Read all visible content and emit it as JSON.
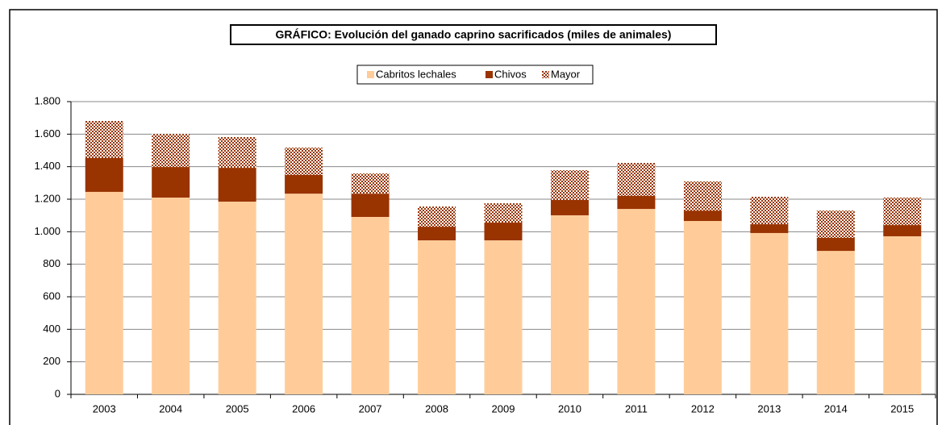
{
  "chart_data": {
    "type": "stacked_bar",
    "title": "GRÁFICO: Evolución del ganado caprino sacrificados (miles de animales)",
    "categories": [
      "2003",
      "2004",
      "2005",
      "2006",
      "2007",
      "2008",
      "2009",
      "2010",
      "2011",
      "2012",
      "2013",
      "2014",
      "2015"
    ],
    "series": [
      {
        "name": "Cabritos lechales",
        "color": "#FFCC99",
        "values": [
          1245,
          1210,
          1185,
          1234,
          1091,
          947,
          947,
          1101,
          1140,
          1066,
          992,
          882,
          972
        ]
      },
      {
        "name": "Chivos",
        "color": "#993300",
        "values": [
          208,
          188,
          208,
          115,
          143,
          84,
          109,
          94,
          80,
          64,
          54,
          80,
          69
        ]
      },
      {
        "name": "Mayor",
        "color": "#993300",
        "pattern": "dots",
        "values": [
          228,
          203,
          189,
          168,
          124,
          124,
          119,
          183,
          203,
          179,
          169,
          168,
          169
        ]
      }
    ],
    "ylim": [
      0,
      1800
    ],
    "yticks": [
      0,
      200,
      400,
      600,
      800,
      {
        "value": 1000,
        "label": "1.000"
      },
      {
        "value": 1200,
        "label": "1.200"
      },
      {
        "value": 1400,
        "label": "1.400"
      },
      {
        "value": 1600,
        "label": "1.600"
      },
      {
        "value": 1800,
        "label": "1.800"
      }
    ],
    "grid": true,
    "legend": "top"
  }
}
